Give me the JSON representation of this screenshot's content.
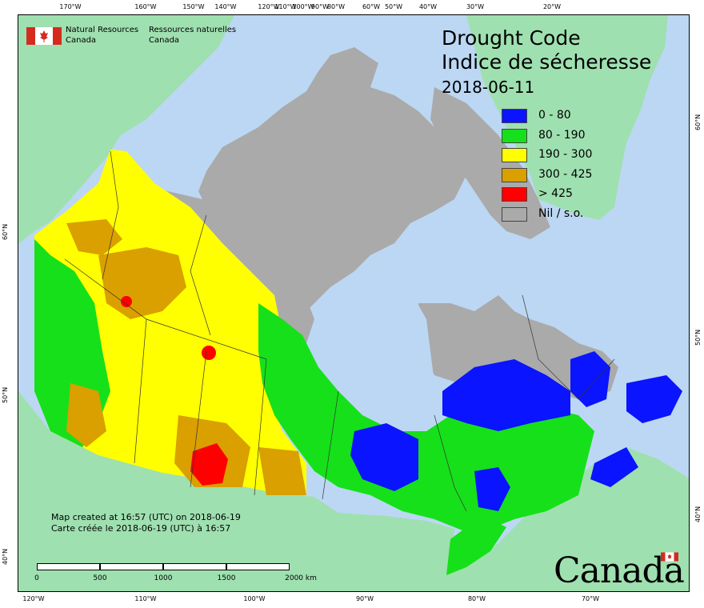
{
  "title": {
    "en": "Drought Code",
    "fr": "Indice de sécheresse",
    "date": "2018-06-11"
  },
  "legend": [
    {
      "label": "0 - 80",
      "color": "#0a14ff"
    },
    {
      "label": "80 - 190",
      "color": "#16e01a"
    },
    {
      "label": "190 - 300",
      "color": "#ffff00"
    },
    {
      "label": "300 - 425",
      "color": "#d9a000"
    },
    {
      "label": "> 425",
      "color": "#ff0000"
    },
    {
      "label": "Nil / s.o.",
      "color": "#aaaaaa"
    }
  ],
  "agency": {
    "en_line1": "Natural Resources",
    "en_line2": "Canada",
    "fr_line1": "Ressources naturelles",
    "fr_line2": "Canada"
  },
  "notes": {
    "en": "Map created at 16:57 (UTC) on 2018-06-19",
    "fr": "Carte créée le 2018-06-19 (UTC) à 16:57"
  },
  "scale": {
    "labels": [
      "0",
      "500",
      "1000",
      "1500",
      "2000  km"
    ]
  },
  "graticule": {
    "top": [
      "170°W",
      "160°W",
      "150°W",
      "140°W",
      "120°W",
      "110°W",
      "100°W",
      "90°W",
      "80°W",
      "60°W",
      "50°W",
      "40°W",
      "30°W",
      "20°W"
    ],
    "bottom": [
      "120°W",
      "110°W",
      "100°W",
      "90°W",
      "80°W",
      "70°W"
    ],
    "left": [
      "60°N",
      "50°N",
      "40°N"
    ],
    "right": [
      "60°N",
      "50°N",
      "40°N"
    ]
  },
  "wordmark": "Canada",
  "colors": {
    "ocean": "#bcd7f3",
    "foreign_land": "#9fe0b0",
    "nil": "#aaaaaa",
    "flag_red": "#d52b1e"
  }
}
